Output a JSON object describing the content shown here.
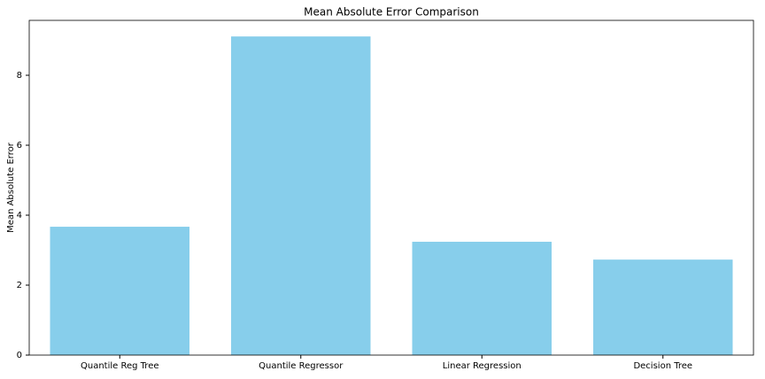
{
  "chart_data": {
    "type": "bar",
    "title": "Mean Absolute Error Comparison",
    "y_label": "Mean Absolute Error",
    "categories": [
      "Quantile Reg Tree",
      "Quantile Regressor",
      "Linear Regression",
      "Decision Tree"
    ],
    "values": [
      3.67,
      9.11,
      3.24,
      2.73
    ],
    "color": "#87ceeb",
    "ylim": [
      0,
      9.57
    ],
    "yticks": [
      0,
      2,
      4,
      6,
      8
    ],
    "grid": false
  }
}
